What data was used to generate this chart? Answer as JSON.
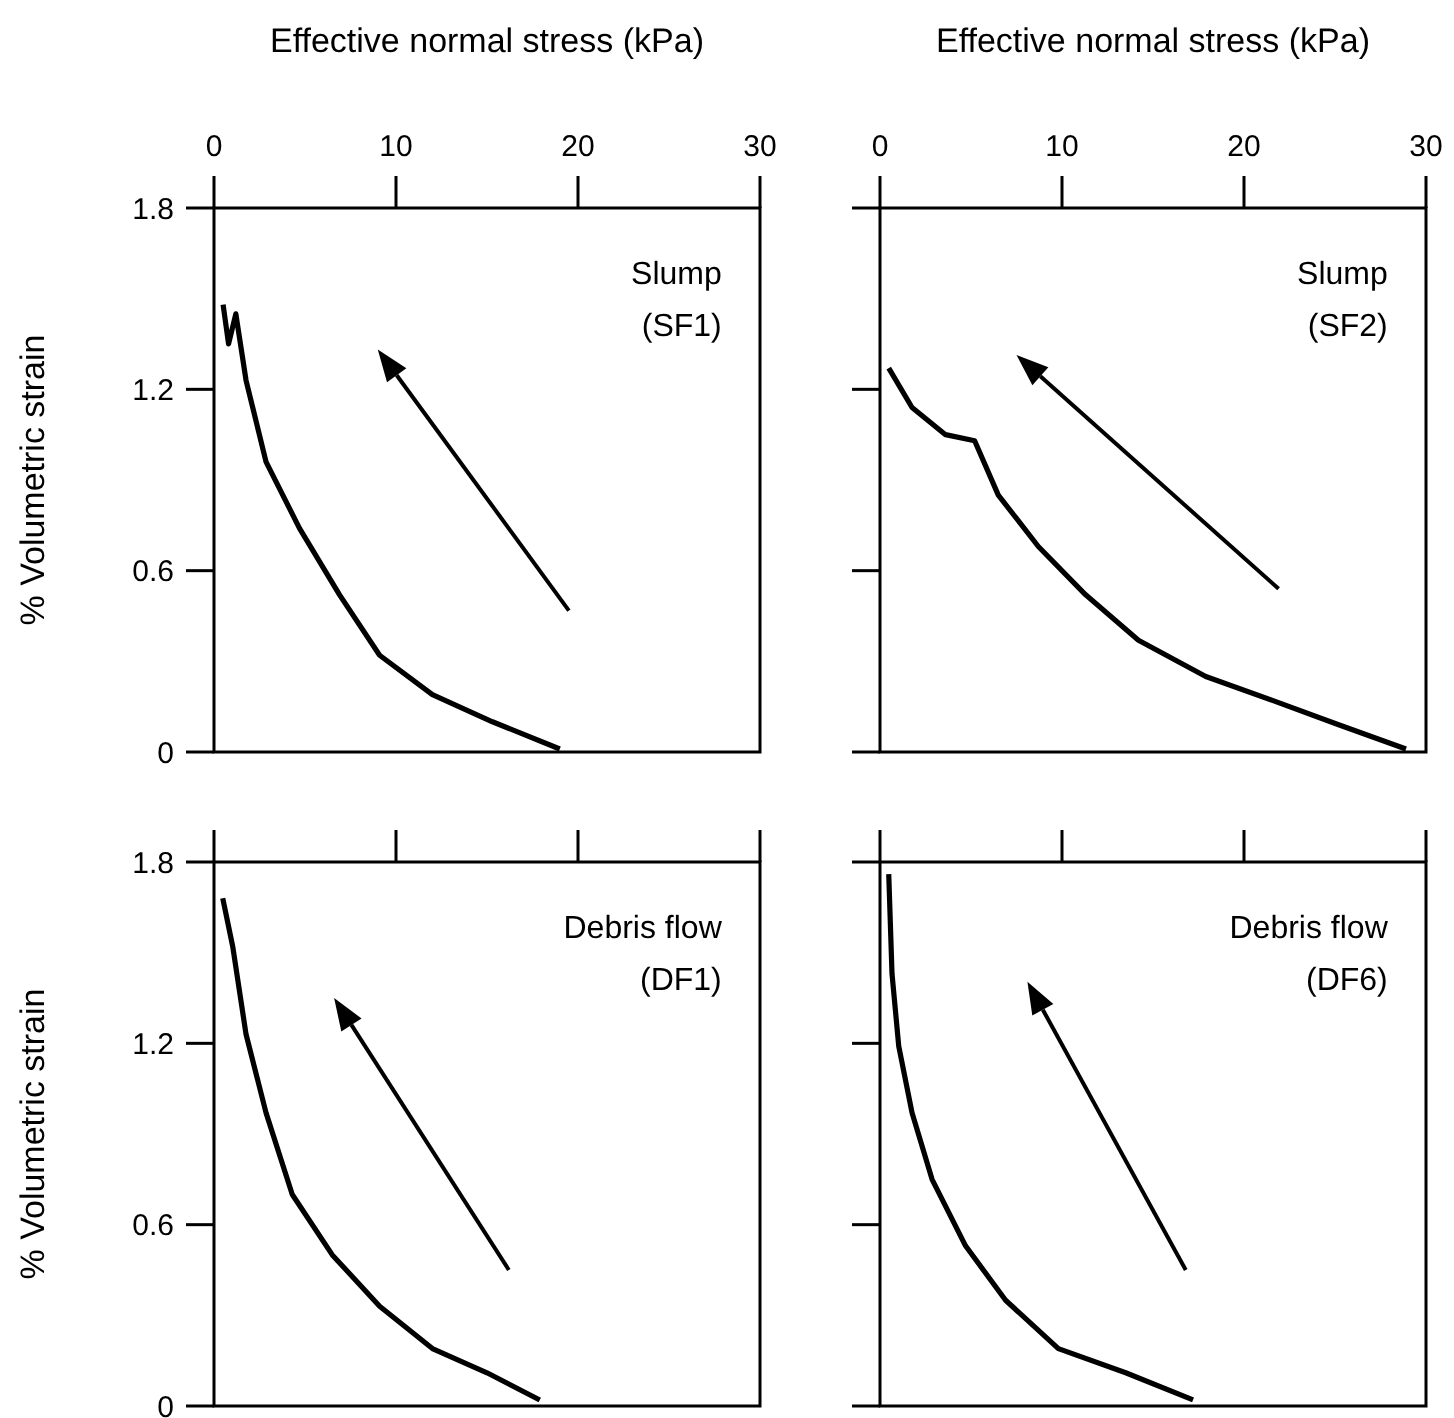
{
  "chart_data": [
    {
      "type": "line",
      "xlabel": "Effective normal stress (kPa)",
      "ylabel": "% Volumetric strain",
      "annotations": [
        "Slump",
        "(SF1)"
      ],
      "xlim": [
        0,
        30
      ],
      "xticks": [
        0,
        10,
        20,
        30
      ],
      "ylim": [
        0,
        1.8
      ],
      "yticks": [
        0,
        0.6,
        1.2,
        1.8
      ],
      "grid": false,
      "series": [
        {
          "color": "#000000",
          "x": [
            0.5,
            0.8,
            1.2,
            1.76,
            2.86,
            4.7,
            6.9,
            9.1,
            12,
            15.3,
            19
          ],
          "values": [
            1.48,
            1.35,
            1.45,
            1.23,
            0.96,
            0.74,
            0.52,
            0.32,
            0.19,
            0.1,
            0.01
          ]
        }
      ]
    },
    {
      "type": "line",
      "xlabel": "Effective normal stress (kPa)",
      "annotations": [
        "Slump",
        "(SF2)"
      ],
      "xlim": [
        0,
        30
      ],
      "xticks": [
        0,
        10,
        20,
        30
      ],
      "ylim": [
        0,
        1.8
      ],
      "yticks": [
        0,
        0.6,
        1.2,
        1.8
      ],
      "tick_labels": "x",
      "grid": false,
      "series": [
        {
          "color": "#000000",
          "x": [
            0.48,
            1.76,
            3.6,
            5.2,
            6.5,
            8.7,
            11.3,
            14.2,
            17.9,
            21.6,
            25.2,
            28.9
          ],
          "values": [
            1.27,
            1.14,
            1.05,
            1.03,
            0.85,
            0.68,
            0.52,
            0.37,
            0.25,
            0.17,
            0.09,
            0.01
          ]
        }
      ]
    },
    {
      "type": "line",
      "ylabel": "% Volumetric strain",
      "annotations": [
        "Debris flow",
        "(DF1)"
      ],
      "xlim": [
        0,
        30
      ],
      "xticks": [
        0,
        10,
        20,
        30
      ],
      "ylim": [
        0,
        1.8
      ],
      "yticks": [
        0,
        0.6,
        1.2,
        1.8
      ],
      "tick_labels": "y",
      "grid": false,
      "series": [
        {
          "color": "#000000",
          "x": [
            0.48,
            1.03,
            1.76,
            2.86,
            4.3,
            6.5,
            9.1,
            12,
            15,
            17.9
          ],
          "values": [
            1.68,
            1.52,
            1.23,
            0.97,
            0.7,
            0.5,
            0.33,
            0.19,
            0.11,
            0.02
          ]
        }
      ]
    },
    {
      "type": "line",
      "annotations": [
        "Debris flow",
        "(DF6)"
      ],
      "xlim": [
        0,
        30
      ],
      "xticks": [
        0,
        10,
        20,
        30
      ],
      "ylim": [
        0,
        1.8
      ],
      "yticks": [
        0,
        0.6,
        1.2,
        1.8
      ],
      "tick_labels": false,
      "grid": false,
      "series": [
        {
          "color": "#000000",
          "x": [
            0.48,
            0.66,
            1.03,
            1.76,
            2.86,
            4.7,
            6.9,
            9.8,
            13.5,
            17.2
          ],
          "values": [
            1.76,
            1.43,
            1.19,
            0.97,
            0.75,
            0.53,
            0.35,
            0.19,
            0.11,
            0.02
          ]
        }
      ]
    }
  ]
}
